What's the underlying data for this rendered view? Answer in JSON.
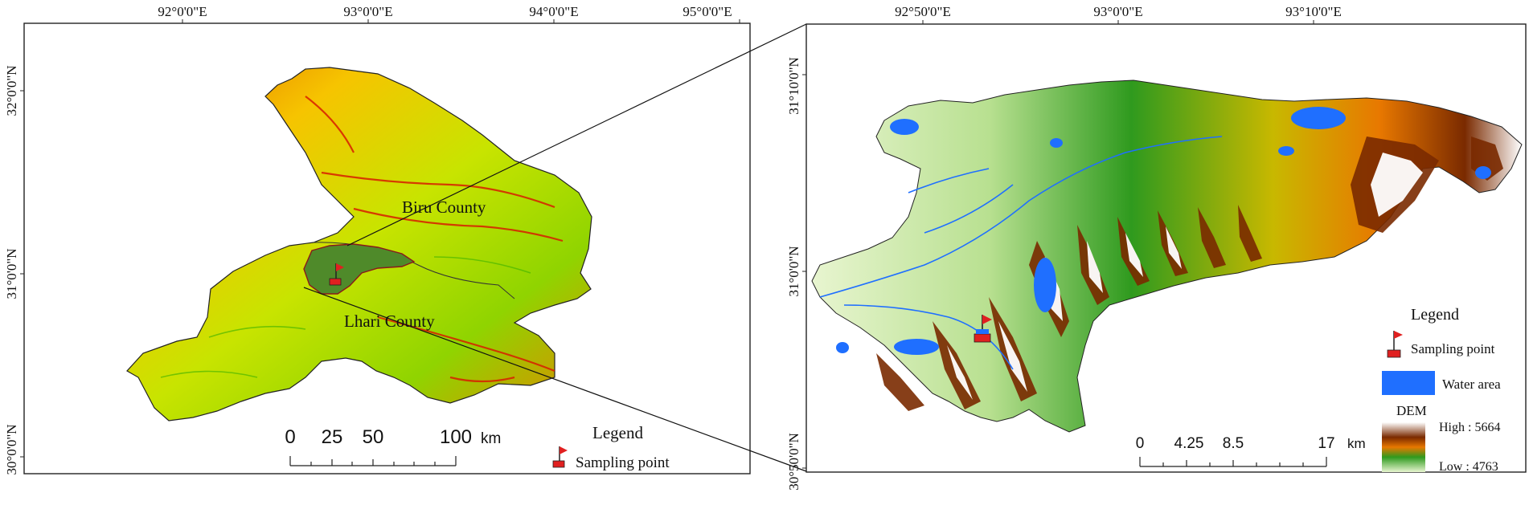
{
  "left_map": {
    "top_labels": [
      "92°0'0\"E",
      "93°0'0\"E",
      "94°0'0\"E",
      "95°0'0\"E"
    ],
    "side_labels": [
      "32°0'0\"N",
      "31°0'0\"N",
      "30°0'0\"N"
    ],
    "county_labels": [
      "Biru County",
      "Lhari County"
    ],
    "scale_ticks": [
      "0",
      "25",
      "50",
      "100"
    ],
    "scale_unit": "km",
    "legend_title": "Legend",
    "legend_item": "Sampling point"
  },
  "right_map": {
    "top_labels": [
      "92°50'0\"E",
      "93°0'0\"E",
      "93°10'0\"E"
    ],
    "side_labels": [
      "31°10'0\"N",
      "31°0'0\"N",
      "30°50'0\"N"
    ],
    "scale_ticks": [
      "0",
      "4.25",
      "8.5",
      "17"
    ],
    "scale_unit": "km",
    "legend_title": "Legend",
    "legend_sampling": "Sampling point",
    "legend_water": "Water area",
    "legend_dem": "DEM",
    "dem_high": "High : 5664",
    "dem_low": "Low : 4763"
  },
  "colors": {
    "water": "#1f6fff",
    "flag": "#e02020",
    "dem_high": "#ffffff",
    "dem_brown": "#7a2a00",
    "dem_orange": "#e87800",
    "dem_green": "#2f9a1e",
    "dem_low": "#e8f5d0"
  }
}
